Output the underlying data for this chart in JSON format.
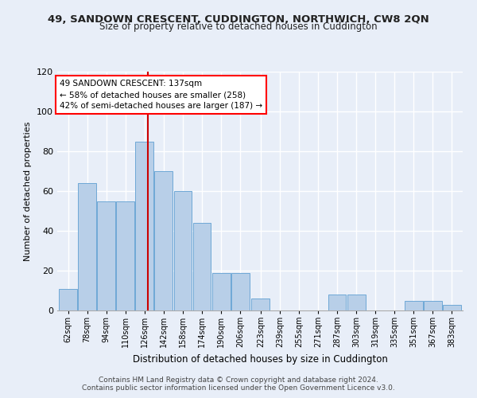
{
  "title1": "49, SANDOWN CRESCENT, CUDDINGTON, NORTHWICH, CW8 2QN",
  "title2": "Size of property relative to detached houses in Cuddington",
  "xlabel": "Distribution of detached houses by size in Cuddington",
  "ylabel": "Number of detached properties",
  "annotation_line1": "49 SANDOWN CRESCENT: 137sqm",
  "annotation_line2": "← 58% of detached houses are smaller (258)",
  "annotation_line3": "42% of semi-detached houses are larger (187) →",
  "bin_labels": [
    "62sqm",
    "78sqm",
    "94sqm",
    "110sqm",
    "126sqm",
    "142sqm",
    "158sqm",
    "174sqm",
    "190sqm",
    "206sqm",
    "223sqm",
    "239sqm",
    "255sqm",
    "271sqm",
    "287sqm",
    "303sqm",
    "319sqm",
    "335sqm",
    "351sqm",
    "367sqm",
    "383sqm"
  ],
  "bar_heights": [
    11,
    64,
    55,
    55,
    85,
    70,
    60,
    44,
    19,
    19,
    6,
    0,
    0,
    0,
    8,
    8,
    0,
    0,
    5,
    5,
    3
  ],
  "bin_starts": [
    62,
    78,
    94,
    110,
    126,
    142,
    158,
    174,
    190,
    206,
    223,
    239,
    255,
    271,
    287,
    303,
    319,
    335,
    351,
    367,
    383
  ],
  "bin_width": 16,
  "property_size": 137,
  "bar_color": "#b8cfe8",
  "bar_edgecolor": "#6fa8d6",
  "line_color": "#cc0000",
  "ylim": [
    0,
    120
  ],
  "yticks": [
    0,
    20,
    40,
    60,
    80,
    100,
    120
  ],
  "bg_color": "#e8eef8",
  "grid_color": "#ffffff",
  "footer1": "Contains HM Land Registry data © Crown copyright and database right 2024.",
  "footer2": "Contains public sector information licensed under the Open Government Licence v3.0."
}
